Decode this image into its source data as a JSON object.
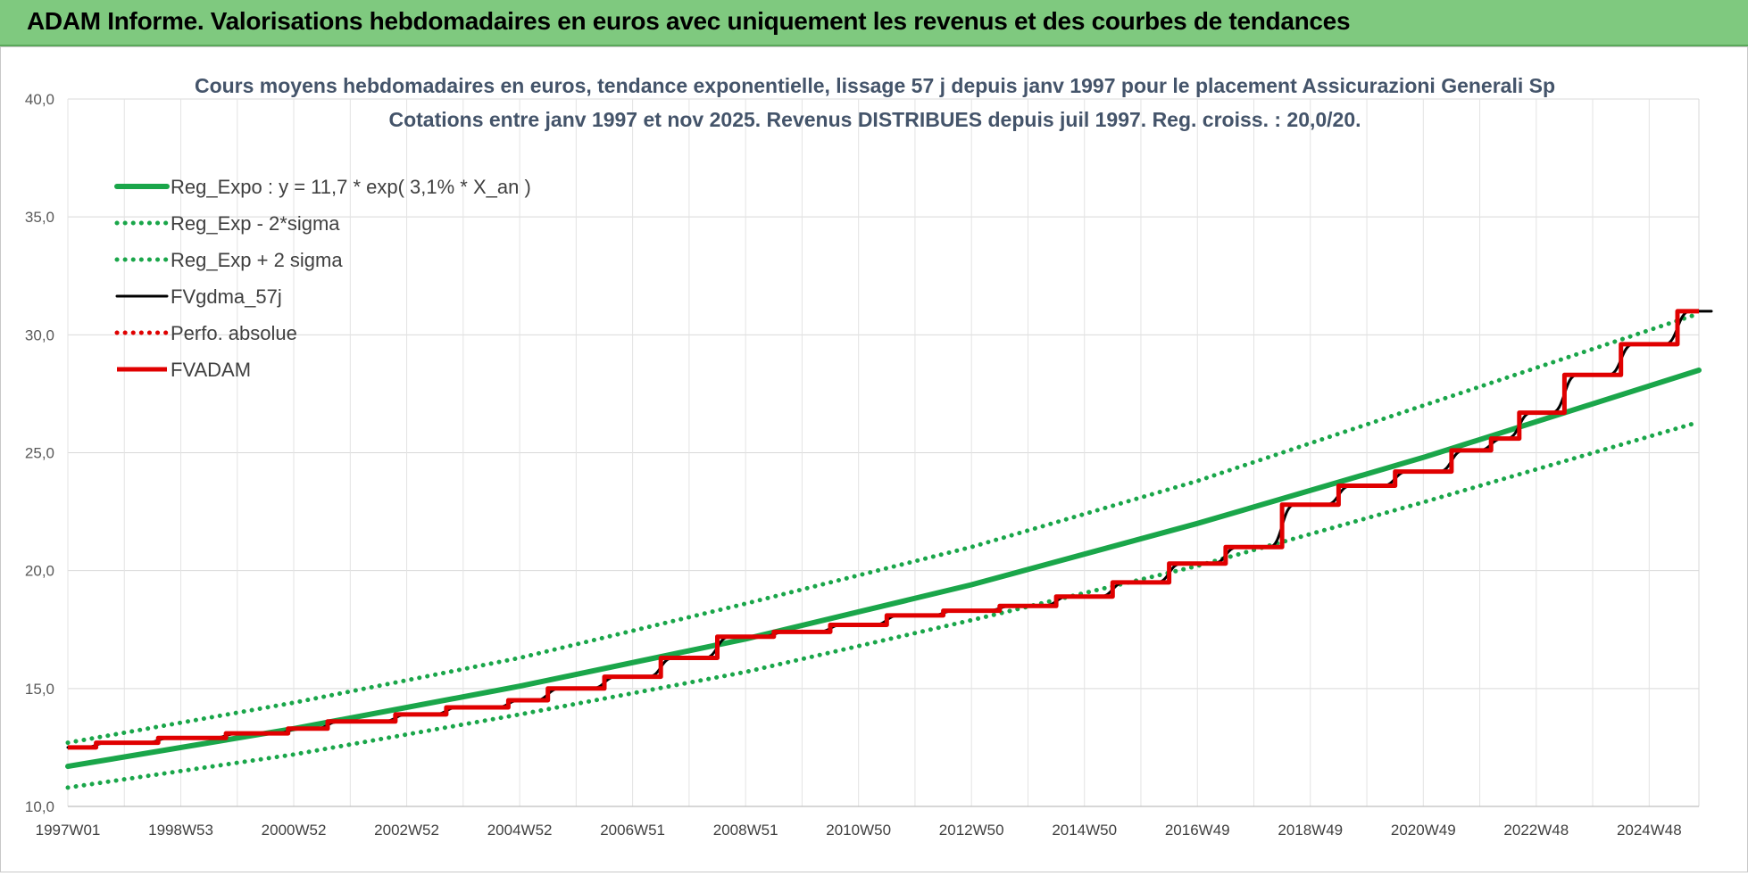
{
  "header": {
    "title": "ADAM Informe. Valorisations hebdomadaires en euros avec uniquement les revenus et des courbes de tendances",
    "accent_color": "#7fc97f"
  },
  "chart_data": {
    "type": "line",
    "title": "Cours moyens hebdomadaires en euros, tendance exponentielle, lissage 57 j depuis janv 1997 pour le placement Assicurazioni Generali Sp",
    "subtitle": "Cotations entre janv 1997 et nov 2025. Revenus DISTRIBUES depuis juil 1997. Reg. croiss. : 20,0/20.",
    "xlabel": "",
    "ylabel": "",
    "x_range": [
      1997.0,
      2025.88
    ],
    "ylim": [
      10,
      40
    ],
    "y_ticks": [
      "10,0",
      "15,0",
      "20,0",
      "25,0",
      "30,0",
      "35,0",
      "40,0"
    ],
    "x_ticks": [
      {
        "label": "1997W01",
        "x": 1997.0
      },
      {
        "label": "1998W53",
        "x": 1999.0
      },
      {
        "label": "2000W52",
        "x": 2001.0
      },
      {
        "label": "2002W52",
        "x": 2003.0
      },
      {
        "label": "2004W52",
        "x": 2005.0
      },
      {
        "label": "2006W51",
        "x": 2007.0
      },
      {
        "label": "2008W51",
        "x": 2009.0
      },
      {
        "label": "2010W50",
        "x": 2011.0
      },
      {
        "label": "2012W50",
        "x": 2013.0
      },
      {
        "label": "2014W50",
        "x": 2015.0
      },
      {
        "label": "2016W49",
        "x": 2017.0
      },
      {
        "label": "2018W49",
        "x": 2019.0
      },
      {
        "label": "2020W49",
        "x": 2021.0
      },
      {
        "label": "2022W48",
        "x": 2023.0
      },
      {
        "label": "2024W48",
        "x": 2025.0
      }
    ],
    "grid": true,
    "legend_position": "top-left",
    "series": [
      {
        "name": "Reg_Expo : y = 11,7 * exp( 3,1% *  X_an )",
        "color": "#1aa64a",
        "style": "solid",
        "x": [
          1997.0,
          2001.0,
          2005.0,
          2009.0,
          2013.0,
          2017.0,
          2021.0,
          2025.88
        ],
        "values": [
          11.7,
          13.3,
          15.1,
          17.1,
          19.4,
          22.0,
          24.8,
          28.5
        ]
      },
      {
        "name": "Reg_Exp - 2*sigma",
        "color": "#1aa64a",
        "style": "dotted",
        "x": [
          1997.0,
          2001.0,
          2005.0,
          2009.0,
          2013.0,
          2017.0,
          2021.0,
          2025.88
        ],
        "values": [
          10.8,
          12.2,
          13.9,
          15.7,
          17.9,
          20.2,
          22.9,
          26.3
        ]
      },
      {
        "name": "Reg_Exp + 2 sigma",
        "color": "#1aa64a",
        "style": "dotted",
        "x": [
          1997.0,
          2001.0,
          2005.0,
          2009.0,
          2013.0,
          2017.0,
          2021.0,
          2025.88
        ],
        "values": [
          12.7,
          14.4,
          16.3,
          18.6,
          21.0,
          23.8,
          27.0,
          30.9
        ]
      },
      {
        "name": "FVgdma_57j",
        "color": "#000000",
        "style": "solid",
        "x": [
          1997.0,
          1997.5,
          1998.6,
          1999.8,
          2000.9,
          2001.6,
          2002.8,
          2003.7,
          2004.8,
          2005.5,
          2006.5,
          2007.5,
          2008.5,
          2009.5,
          2010.5,
          2011.5,
          2012.5,
          2013.5,
          2014.5,
          2015.5,
          2016.5,
          2017.5,
          2018.5,
          2019.5,
          2020.5,
          2021.5,
          2022.2,
          2022.7,
          2023.5,
          2024.5,
          2025.5,
          2025.88
        ],
        "values": [
          12.5,
          12.7,
          12.9,
          13.1,
          13.3,
          13.6,
          13.9,
          14.2,
          14.5,
          15.0,
          15.5,
          16.3,
          17.2,
          17.4,
          17.7,
          18.1,
          18.3,
          18.5,
          18.9,
          19.5,
          20.3,
          21.0,
          22.8,
          23.6,
          24.2,
          25.1,
          25.6,
          26.7,
          28.3,
          29.6,
          31.0,
          31.0
        ]
      },
      {
        "name": "Perfo. absolue",
        "color": "#e00000",
        "style": "dotted",
        "x": [],
        "values": []
      },
      {
        "name": "FVADAM",
        "color": "#e00000",
        "style": "solid-step",
        "x": [
          1997.0,
          1997.5,
          1998.6,
          1999.8,
          2000.9,
          2001.6,
          2002.8,
          2003.7,
          2004.8,
          2005.5,
          2006.5,
          2007.5,
          2008.5,
          2009.5,
          2010.5,
          2011.5,
          2012.5,
          2013.5,
          2014.5,
          2015.5,
          2016.5,
          2017.5,
          2018.5,
          2019.5,
          2020.5,
          2021.5,
          2022.2,
          2022.7,
          2023.5,
          2024.5,
          2025.5,
          2025.88
        ],
        "values": [
          12.5,
          12.7,
          12.9,
          13.1,
          13.3,
          13.6,
          13.9,
          14.2,
          14.5,
          15.0,
          15.5,
          16.3,
          17.2,
          17.4,
          17.7,
          18.1,
          18.3,
          18.5,
          18.9,
          19.5,
          20.3,
          21.0,
          22.8,
          23.6,
          24.2,
          25.1,
          25.6,
          26.7,
          28.3,
          29.6,
          31.0,
          31.0
        ]
      }
    ]
  }
}
